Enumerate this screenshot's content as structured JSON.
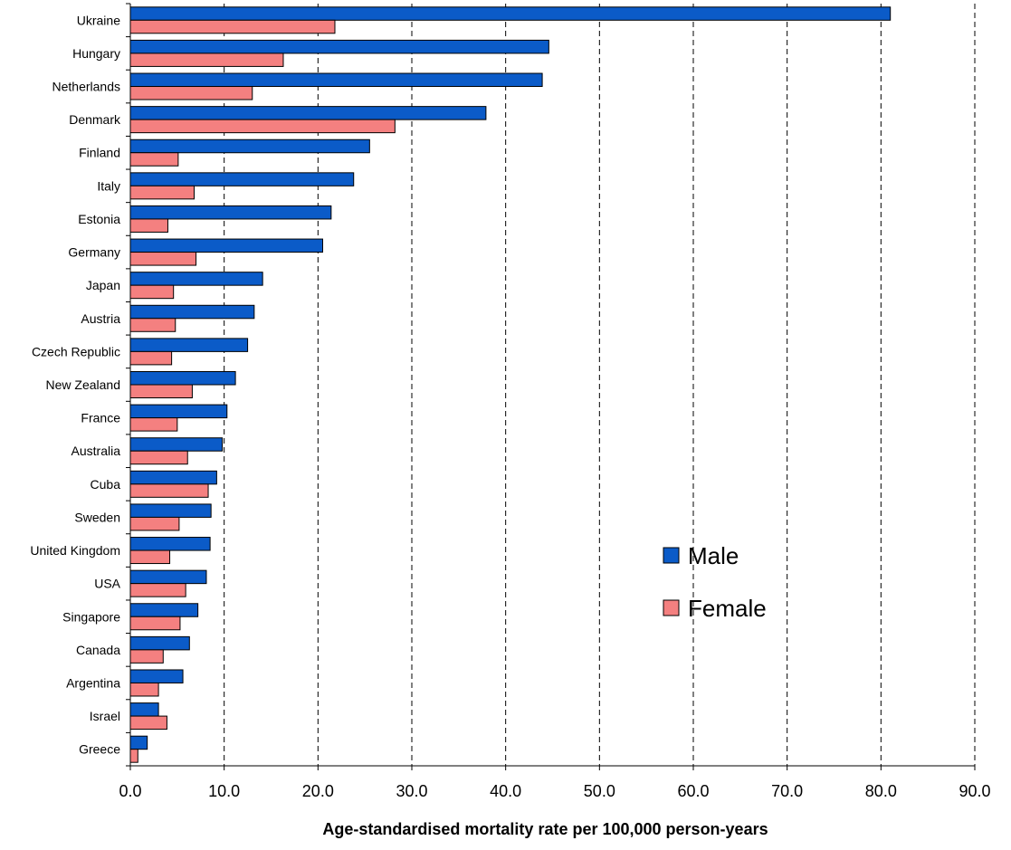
{
  "chart_data": {
    "type": "bar",
    "orientation": "horizontal",
    "categories": [
      "Ukraine",
      "Hungary",
      "Netherlands",
      "Denmark",
      "Finland",
      "Italy",
      "Estonia",
      "Germany",
      "Japan",
      "Austria",
      "Czech Republic",
      "New Zealand",
      "France",
      "Australia",
      "Cuba",
      "Sweden",
      "United Kingdom",
      "USA",
      "Singapore",
      "Canada",
      "Argentina",
      "Israel",
      "Greece"
    ],
    "series": [
      {
        "name": "Male",
        "color": "#0b5bc8",
        "values": [
          81.0,
          44.6,
          43.9,
          37.9,
          25.5,
          23.8,
          21.4,
          20.5,
          14.1,
          13.2,
          12.5,
          11.2,
          10.3,
          9.8,
          9.2,
          8.6,
          8.5,
          8.1,
          7.2,
          6.3,
          5.6,
          3.0,
          1.8
        ]
      },
      {
        "name": "Female",
        "color": "#f48080",
        "values": [
          21.8,
          16.3,
          13.0,
          28.2,
          5.1,
          6.8,
          4.0,
          7.0,
          4.6,
          4.8,
          4.4,
          6.6,
          5.0,
          6.1,
          8.3,
          5.2,
          4.2,
          5.9,
          5.3,
          3.5,
          3.0,
          3.9,
          0.8
        ]
      }
    ],
    "xlim": [
      0,
      90
    ],
    "xticks": [
      "0.0",
      "10.0",
      "20.0",
      "30.0",
      "40.0",
      "50.0",
      "60.0",
      "70.0",
      "80.0",
      "90.0"
    ],
    "xlabel": "Age-standardised mortality rate per 100,000 person-years",
    "ylabel": "",
    "title": "",
    "grid": "vertical dashed",
    "legend_position": "right"
  }
}
